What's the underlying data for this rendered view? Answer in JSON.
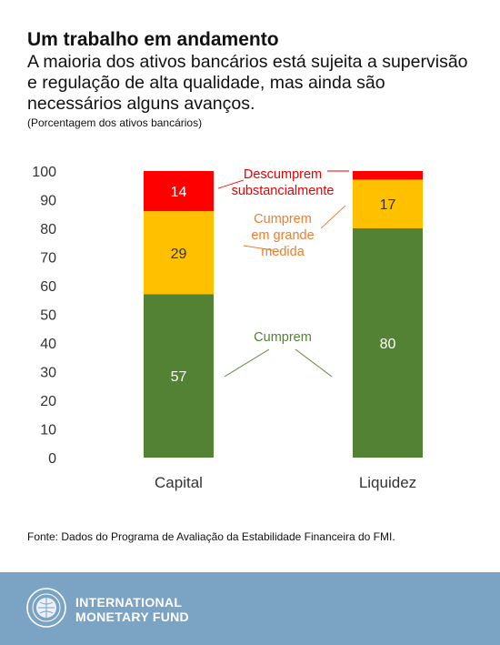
{
  "header": {
    "title": "Um trabalho em andamento",
    "subtitle": "A maioria dos ativos bancários está sujeita a supervisão e regulação de alta qualidade, mas ainda são necessários alguns avanços.",
    "units": "(Porcentagem dos ativos bancários)"
  },
  "chart_data": {
    "type": "bar",
    "stacked": true,
    "categories": [
      "Capital",
      "Liquidez"
    ],
    "series": [
      {
        "name": "Cumprem",
        "values": [
          57,
          80
        ],
        "color": "#548235",
        "label_color": "#548235"
      },
      {
        "name": "Cumprem em grande medida",
        "values": [
          29,
          17
        ],
        "color": "#ffc000",
        "label_color": "#ed7d31"
      },
      {
        "name": "Descumprem substancialmente",
        "values": [
          14,
          3
        ],
        "color": "#ff0000",
        "label_color": "#e60000"
      }
    ],
    "data_labels": [
      [
        "57",
        "80"
      ],
      [
        "29",
        "17"
      ],
      [
        "14",
        ""
      ]
    ],
    "series_label_lines": [
      [
        "Cumprem"
      ],
      [
        "Cumprem",
        "em grande",
        "medida"
      ],
      [
        "Descumprem",
        "substancialmente"
      ]
    ],
    "ylim": [
      0,
      100
    ],
    "yticks": [
      0,
      10,
      20,
      30,
      40,
      50,
      60,
      70,
      80,
      90,
      100
    ],
    "xlabel": "",
    "ylabel": "",
    "grid": false
  },
  "source": "Fonte: Dados do Programa de Avaliação da Estabilidade Financeira do FMI.",
  "footer": {
    "org_line1": "INTERNATIONAL",
    "org_line2": "MONETARY FUND",
    "background": "#7ba3c4"
  }
}
